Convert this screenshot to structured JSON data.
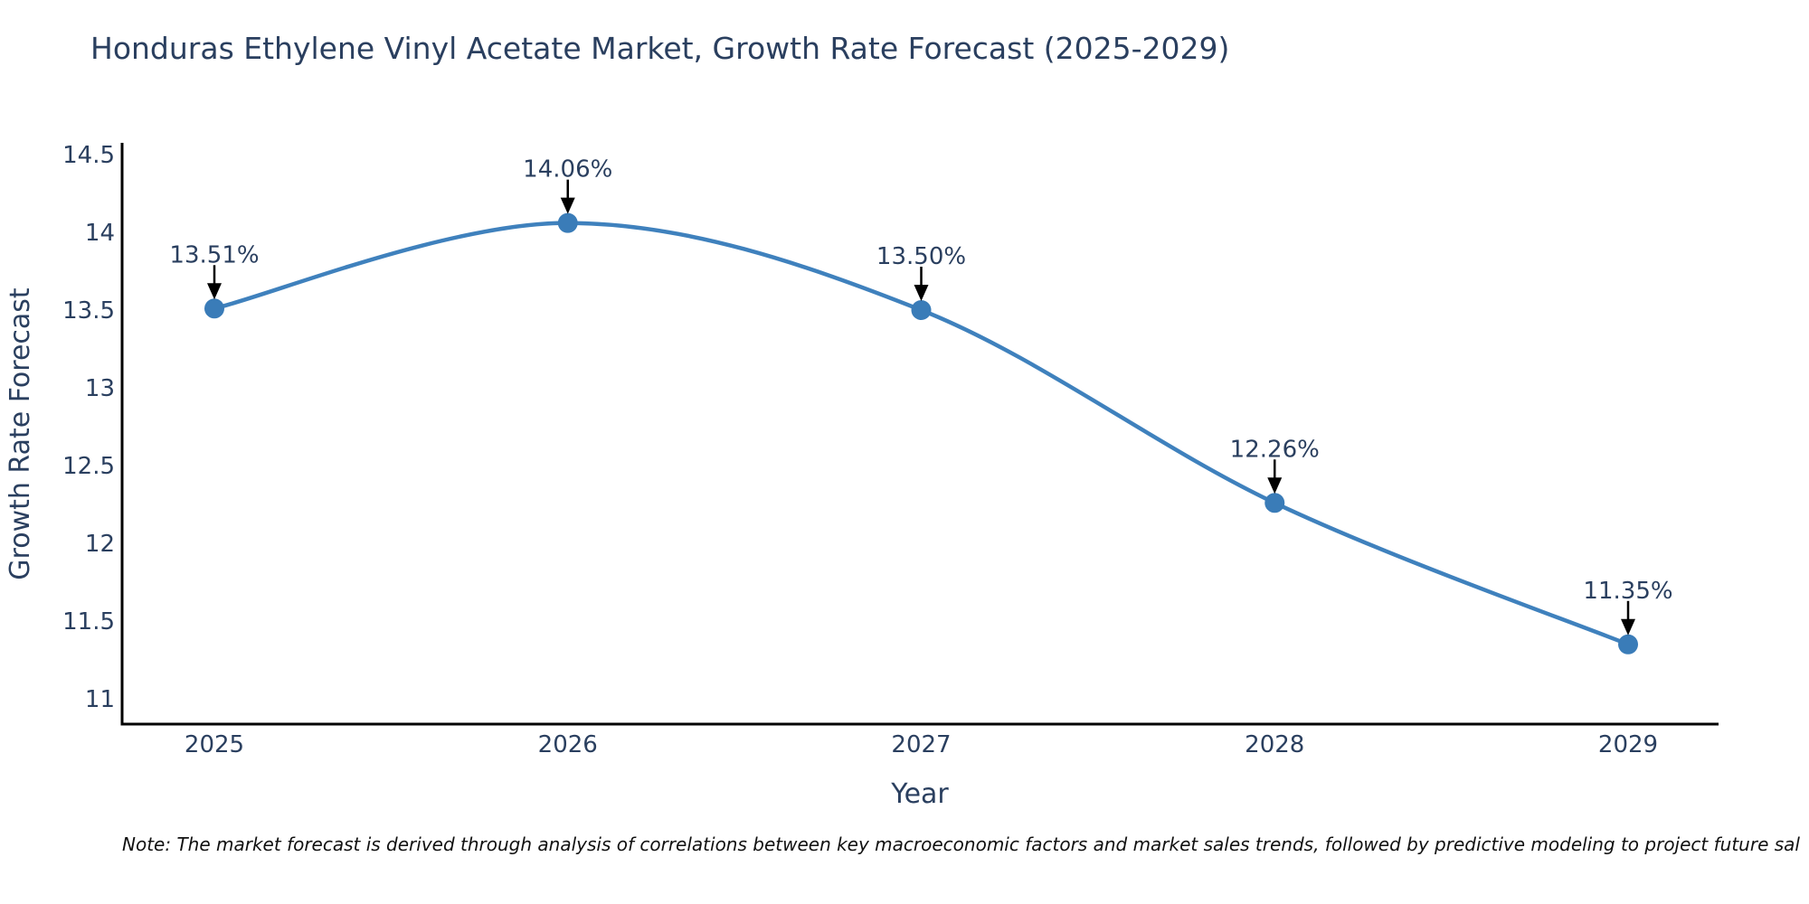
{
  "title": "Honduras Ethylene Vinyl Acetate Market, Growth Rate Forecast (2025-2029)",
  "note": "Note: The market forecast is derived through analysis of correlations between key macroeconomic factors and market sales trends, followed by predictive modeling to project future sal",
  "chart_data": {
    "type": "line",
    "title": "Honduras Ethylene Vinyl Acetate Market, Growth Rate Forecast (2025-2029)",
    "xlabel": "Year",
    "ylabel": "Growth Rate Forecast",
    "x": [
      2025,
      2026,
      2027,
      2028,
      2029
    ],
    "series": [
      {
        "name": "Growth Rate Forecast",
        "values": [
          13.51,
          14.06,
          13.5,
          12.26,
          11.35
        ]
      }
    ],
    "point_labels": [
      "13.51%",
      "14.06%",
      "13.50%",
      "12.26%",
      "11.35%"
    ],
    "xticks": [
      "2025",
      "2026",
      "2027",
      "2028",
      "2029"
    ],
    "yticks": [
      14.5,
      14,
      13.5,
      13,
      12.5,
      12,
      11.5,
      11
    ],
    "ylim": [
      10.84,
      14.58
    ],
    "xlim": [
      2024.74,
      2029.27
    ],
    "grid": false,
    "legend_visible": false,
    "line_shape": "spline",
    "markers": true,
    "annotation_arrows": true,
    "colors": {
      "line": "#3f81bd",
      "marker": "#3a7cb8",
      "text": "#2a3f5f",
      "axis": "#000000",
      "arrow": "#000000",
      "note_text": "#111111",
      "background": "#ffffff"
    }
  }
}
